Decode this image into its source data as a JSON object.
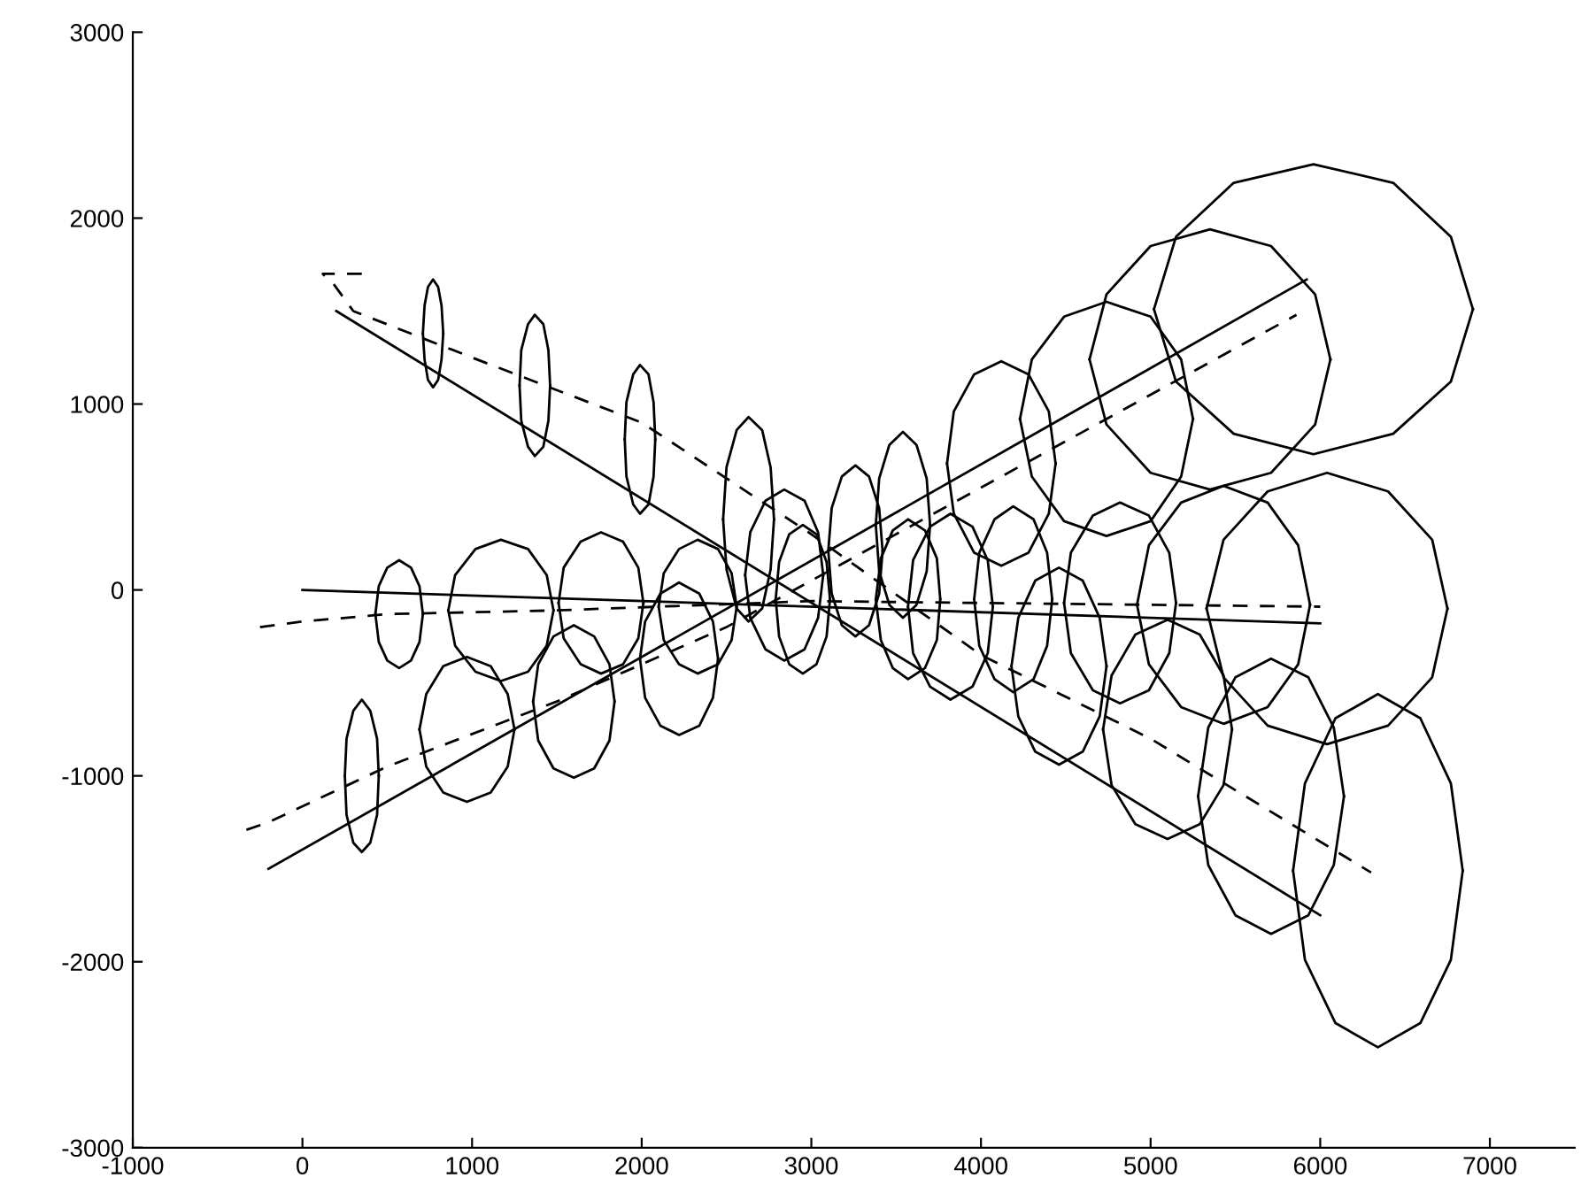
{
  "chart_data": {
    "type": "line",
    "xlim": [
      -1000,
      7500
    ],
    "ylim": [
      -3000,
      3000
    ],
    "xticks": [
      -1000,
      0,
      1000,
      2000,
      3000,
      4000,
      5000,
      6000,
      7000
    ],
    "yticks": [
      -3000,
      -2000,
      -1000,
      0,
      1000,
      2000,
      3000
    ],
    "grid": false,
    "marker": "none",
    "series": [
      {
        "color": "#000000",
        "line_style": "solid",
        "x": [
          200,
          6000
        ],
        "values": [
          1500,
          -1750
        ]
      },
      {
        "color": "#000000",
        "line_style": "solid",
        "x": [
          -200,
          5920
        ],
        "values": [
          -1500,
          1670
        ]
      },
      {
        "color": "#000000",
        "line_style": "solid",
        "x": [
          0,
          6000
        ],
        "values": [
          0,
          -180
        ]
      },
      {
        "color": "#000000",
        "line_style": "dashed",
        "x": [
          350,
          120,
          180,
          300,
          1000,
          2000,
          3000,
          4000,
          5000,
          6300
        ],
        "values": [
          1700,
          1700,
          1650,
          1500,
          1250,
          900,
          300,
          -350,
          -800,
          -1520
        ]
      },
      {
        "color": "#000000",
        "line_style": "dashed",
        "x": [
          -330,
          -200,
          500,
          1500,
          2500,
          3000,
          4000,
          5000,
          5860
        ],
        "values": [
          -1290,
          -1250,
          -950,
          -600,
          -200,
          50,
          550,
          1050,
          1480
        ]
      },
      {
        "color": "#000000",
        "line_style": "dashed",
        "x": [
          -250,
          0,
          500,
          1500,
          3000,
          6000
        ],
        "values": [
          -200,
          -170,
          -130,
          -110,
          -60,
          -90
        ]
      },
      {
        "color": "#000000",
        "line_style": "solid",
        "x": [
          830,
          820,
          800,
          770,
          740,
          720,
          710,
          720,
          740,
          770,
          800,
          820,
          830
        ],
        "values": [
          1380,
          1530,
          1630,
          1670,
          1630,
          1530,
          1380,
          1240,
          1130,
          1090,
          1130,
          1240,
          1380
        ]
      },
      {
        "color": "#000000",
        "line_style": "solid",
        "x": [
          1460,
          1450,
          1420,
          1370,
          1330,
          1290,
          1280,
          1290,
          1330,
          1370,
          1420,
          1450,
          1460
        ],
        "values": [
          1100,
          1290,
          1430,
          1480,
          1430,
          1290,
          1100,
          910,
          770,
          720,
          770,
          910,
          1100
        ]
      },
      {
        "color": "#000000",
        "line_style": "solid",
        "x": [
          2080,
          2070,
          2040,
          1990,
          1950,
          1910,
          1900,
          1910,
          1950,
          1990,
          2040,
          2070,
          2080
        ],
        "values": [
          810,
          1010,
          1160,
          1210,
          1160,
          1010,
          810,
          610,
          460,
          410,
          460,
          610,
          810
        ]
      },
      {
        "color": "#000000",
        "line_style": "solid",
        "x": [
          2780,
          2760,
          2710,
          2630,
          2560,
          2500,
          2480,
          2500,
          2560,
          2630,
          2710,
          2760,
          2780
        ],
        "values": [
          380,
          660,
          860,
          930,
          860,
          660,
          380,
          110,
          -100,
          -170,
          -100,
          110,
          380
        ]
      },
      {
        "color": "#000000",
        "line_style": "solid",
        "x": [
          710,
          690,
          640,
          570,
          500,
          450,
          430,
          450,
          500,
          570,
          640,
          690,
          710
        ],
        "values": [
          -130,
          20,
          120,
          160,
          120,
          20,
          -130,
          -280,
          -380,
          -420,
          -380,
          -280,
          -130
        ]
      },
      {
        "color": "#000000",
        "line_style": "solid",
        "x": [
          1480,
          1440,
          1330,
          1170,
          1020,
          900,
          860,
          900,
          1020,
          1170,
          1330,
          1440,
          1480
        ],
        "values": [
          -110,
          80,
          220,
          270,
          220,
          80,
          -110,
          -300,
          -440,
          -490,
          -440,
          -300,
          -110
        ]
      },
      {
        "color": "#000000",
        "line_style": "solid",
        "x": [
          2010,
          1980,
          1890,
          1760,
          1640,
          1540,
          1510,
          1540,
          1640,
          1760,
          1890,
          1980,
          2010
        ],
        "values": [
          -70,
          120,
          260,
          310,
          260,
          120,
          -70,
          -260,
          -400,
          -450,
          -400,
          -260,
          -70
        ]
      },
      {
        "color": "#000000",
        "line_style": "solid",
        "x": [
          2560,
          2530,
          2450,
          2330,
          2220,
          2130,
          2100,
          2130,
          2220,
          2330,
          2450,
          2530,
          2560
        ],
        "values": [
          -90,
          90,
          220,
          270,
          220,
          90,
          -90,
          -270,
          -400,
          -450,
          -400,
          -270,
          -90
        ]
      },
      {
        "color": "#000000",
        "line_style": "solid",
        "x": [
          450,
          440,
          400,
          350,
          300,
          260,
          250,
          260,
          300,
          350,
          400,
          440,
          450
        ],
        "values": [
          -1000,
          -800,
          -650,
          -590,
          -650,
          -800,
          -1000,
          -1210,
          -1360,
          -1410,
          -1360,
          -1210,
          -1000
        ]
      },
      {
        "color": "#000000",
        "line_style": "solid",
        "x": [
          1250,
          1210,
          1110,
          970,
          830,
          730,
          690,
          730,
          830,
          970,
          1110,
          1210,
          1250
        ],
        "values": [
          -750,
          -560,
          -410,
          -360,
          -410,
          -560,
          -750,
          -950,
          -1090,
          -1140,
          -1090,
          -950,
          -750
        ]
      },
      {
        "color": "#000000",
        "line_style": "solid",
        "x": [
          1840,
          1810,
          1720,
          1600,
          1480,
          1390,
          1360,
          1390,
          1480,
          1600,
          1720,
          1810,
          1840
        ],
        "values": [
          -600,
          -400,
          -250,
          -190,
          -250,
          -400,
          -600,
          -810,
          -960,
          -1010,
          -960,
          -810,
          -600
        ]
      },
      {
        "color": "#000000",
        "line_style": "solid",
        "x": [
          2450,
          2420,
          2340,
          2220,
          2110,
          2020,
          1990,
          2020,
          2110,
          2220,
          2340,
          2420,
          2450
        ],
        "values": [
          -370,
          -170,
          -20,
          40,
          -20,
          -170,
          -370,
          -580,
          -730,
          -780,
          -730,
          -580,
          -370
        ]
      },
      {
        "color": "#000000",
        "line_style": "solid",
        "x": [
          3070,
          3040,
          2960,
          2840,
          2730,
          2640,
          2610,
          2640,
          2730,
          2840,
          2960,
          3040,
          3070
        ],
        "values": [
          80,
          310,
          480,
          540,
          480,
          310,
          80,
          -150,
          -320,
          -380,
          -320,
          -150,
          80
        ]
      },
      {
        "color": "#000000",
        "line_style": "solid",
        "x": [
          3110,
          3090,
          3030,
          2950,
          2870,
          2810,
          2790,
          2810,
          2870,
          2950,
          3030,
          3090,
          3110
        ],
        "values": [
          -50,
          150,
          300,
          350,
          300,
          150,
          -50,
          -250,
          -400,
          -450,
          -400,
          -250,
          -50
        ]
      },
      {
        "color": "#000000",
        "line_style": "solid",
        "x": [
          3420,
          3400,
          3340,
          3260,
          3180,
          3120,
          3100,
          3120,
          3180,
          3260,
          3340,
          3400,
          3420
        ],
        "values": [
          210,
          440,
          610,
          670,
          610,
          440,
          210,
          -20,
          -190,
          -250,
          -190,
          -20,
          210
        ]
      },
      {
        "color": "#000000",
        "line_style": "solid",
        "x": [
          3700,
          3680,
          3620,
          3540,
          3460,
          3400,
          3380,
          3400,
          3460,
          3540,
          3620,
          3680,
          3700
        ],
        "values": [
          350,
          600,
          780,
          850,
          780,
          600,
          350,
          100,
          -80,
          -150,
          -80,
          100,
          350
        ]
      },
      {
        "color": "#000000",
        "line_style": "solid",
        "x": [
          3760,
          3740,
          3670,
          3570,
          3480,
          3410,
          3380,
          3410,
          3480,
          3570,
          3670,
          3740,
          3760
        ],
        "values": [
          -50,
          170,
          320,
          380,
          320,
          170,
          -50,
          -270,
          -420,
          -480,
          -420,
          -270,
          -50
        ]
      },
      {
        "color": "#000000",
        "line_style": "solid",
        "x": [
          4070,
          4040,
          3950,
          3820,
          3700,
          3600,
          3570,
          3600,
          3700,
          3820,
          3950,
          4040,
          4070
        ],
        "values": [
          -90,
          160,
          340,
          410,
          340,
          160,
          -90,
          -340,
          -520,
          -590,
          -520,
          -340,
          -90
        ]
      },
      {
        "color": "#000000",
        "line_style": "solid",
        "x": [
          4440,
          4400,
          4280,
          4120,
          3960,
          3840,
          3800,
          3840,
          3960,
          4120,
          4280,
          4400,
          4440
        ],
        "values": [
          680,
          960,
          1160,
          1230,
          1160,
          960,
          680,
          410,
          200,
          130,
          200,
          410,
          680
        ]
      },
      {
        "color": "#000000",
        "line_style": "solid",
        "x": [
          4420,
          4390,
          4310,
          4190,
          4080,
          3990,
          3960,
          3990,
          4080,
          4190,
          4310,
          4390,
          4420
        ],
        "values": [
          -50,
          200,
          380,
          450,
          380,
          200,
          -50,
          -300,
          -480,
          -550,
          -480,
          -300,
          -50
        ]
      },
      {
        "color": "#000000",
        "line_style": "solid",
        "x": [
          4740,
          4700,
          4600,
          4460,
          4320,
          4220,
          4180,
          4220,
          4320,
          4460,
          4600,
          4700,
          4740
        ],
        "values": [
          -410,
          -150,
          50,
          120,
          50,
          -150,
          -410,
          -680,
          -870,
          -940,
          -870,
          -680,
          -410
        ]
      },
      {
        "color": "#000000",
        "line_style": "solid",
        "x": [
          5250,
          5180,
          5000,
          4740,
          4490,
          4300,
          4230,
          4300,
          4490,
          4740,
          5000,
          5180,
          5250
        ],
        "values": [
          920,
          1240,
          1470,
          1550,
          1470,
          1240,
          920,
          610,
          370,
          290,
          370,
          610,
          920
        ]
      },
      {
        "color": "#000000",
        "line_style": "solid",
        "x": [
          6060,
          5970,
          5710,
          5350,
          5000,
          4740,
          4640,
          4740,
          5000,
          5350,
          5710,
          5970,
          6060
        ],
        "values": [
          1240,
          1590,
          1850,
          1940,
          1850,
          1590,
          1240,
          890,
          630,
          540,
          630,
          890,
          1240
        ]
      },
      {
        "color": "#000000",
        "line_style": "solid",
        "x": [
          6900,
          6770,
          6430,
          5960,
          5490,
          5150,
          5020,
          5150,
          5490,
          5960,
          6430,
          6770,
          6900
        ],
        "values": [
          1510,
          1900,
          2190,
          2290,
          2190,
          1900,
          1510,
          1120,
          840,
          730,
          840,
          1120,
          1510
        ]
      },
      {
        "color": "#000000",
        "line_style": "solid",
        "x": [
          5150,
          5110,
          4990,
          4820,
          4660,
          4530,
          4490,
          4530,
          4660,
          4820,
          4990,
          5110,
          5150
        ],
        "values": [
          -70,
          200,
          400,
          470,
          400,
          200,
          -70,
          -340,
          -540,
          -610,
          -540,
          -340,
          -70
        ]
      },
      {
        "color": "#000000",
        "line_style": "solid",
        "x": [
          5940,
          5870,
          5690,
          5430,
          5180,
          4990,
          4920,
          4990,
          5180,
          5430,
          5690,
          5870,
          5940
        ],
        "values": [
          -80,
          240,
          470,
          560,
          470,
          240,
          -80,
          -400,
          -630,
          -720,
          -630,
          -400,
          -80
        ]
      },
      {
        "color": "#000000",
        "line_style": "solid",
        "x": [
          5480,
          5430,
          5290,
          5100,
          4910,
          4770,
          4720,
          4770,
          4910,
          5100,
          5290,
          5430,
          5480
        ],
        "values": [
          -750,
          -460,
          -240,
          -160,
          -240,
          -460,
          -750,
          -1050,
          -1260,
          -1340,
          -1260,
          -1050,
          -750
        ]
      },
      {
        "color": "#000000",
        "line_style": "solid",
        "x": [
          6750,
          6660,
          6400,
          6040,
          5690,
          5430,
          5330,
          5430,
          5690,
          6040,
          6400,
          6660,
          6750
        ],
        "values": [
          -100,
          270,
          530,
          630,
          530,
          270,
          -100,
          -470,
          -730,
          -830,
          -730,
          -470,
          -100
        ]
      },
      {
        "color": "#000000",
        "line_style": "solid",
        "x": [
          6140,
          6080,
          5930,
          5710,
          5500,
          5340,
          5280,
          5340,
          5500,
          5710,
          5930,
          6080,
          6140
        ],
        "values": [
          -1110,
          -740,
          -470,
          -370,
          -470,
          -740,
          -1110,
          -1480,
          -1750,
          -1850,
          -1750,
          -1480,
          -1110
        ]
      },
      {
        "color": "#000000",
        "line_style": "solid",
        "x": [
          6840,
          6770,
          6590,
          6340,
          6090,
          5910,
          5840,
          5910,
          6090,
          6340,
          6590,
          6770,
          6840
        ],
        "values": [
          -1510,
          -1040,
          -690,
          -560,
          -690,
          -1040,
          -1510,
          -1990,
          -2330,
          -2460,
          -2330,
          -1990,
          -1510
        ]
      }
    ]
  }
}
